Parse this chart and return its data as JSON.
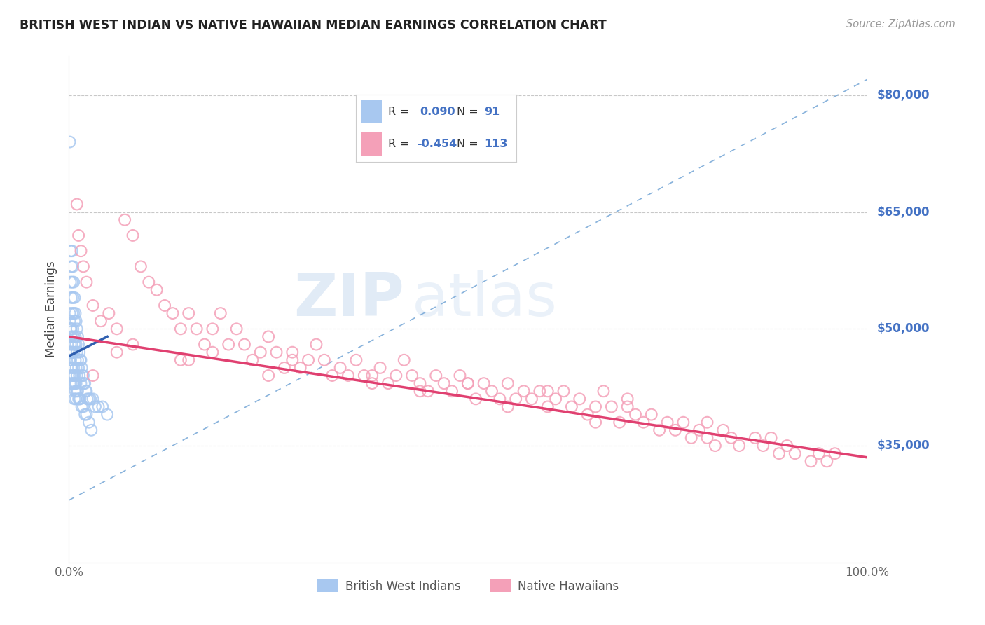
{
  "title": "BRITISH WEST INDIAN VS NATIVE HAWAIIAN MEDIAN EARNINGS CORRELATION CHART",
  "source_text": "Source: ZipAtlas.com",
  "ylabel": "Median Earnings",
  "xlim": [
    0,
    1.0
  ],
  "ylim": [
    20000,
    85000
  ],
  "xtick_labels": [
    "0.0%",
    "100.0%"
  ],
  "ytick_values": [
    35000,
    50000,
    65000,
    80000
  ],
  "ytick_labels": [
    "$35,000",
    "$50,000",
    "$65,000",
    "$80,000"
  ],
  "color_blue": "#A8C8F0",
  "color_pink": "#F4A0B8",
  "color_blue_line": "#3060B0",
  "color_pink_line": "#E04070",
  "color_dashed_line": "#7BAAD8",
  "watermark_zip": "ZIP",
  "watermark_atlas": "atlas",
  "background_color": "#FFFFFF",
  "grid_color": "#BBBBBB",
  "title_color": "#222222",
  "axis_label_color": "#444444",
  "tick_label_color_right": "#4472C4",
  "source_color": "#999999",
  "legend_value_color": "#4472C4",
  "blue_x": [
    0.001,
    0.001,
    0.001,
    0.002,
    0.002,
    0.002,
    0.002,
    0.003,
    0.003,
    0.003,
    0.003,
    0.003,
    0.004,
    0.004,
    0.004,
    0.004,
    0.005,
    0.005,
    0.005,
    0.005,
    0.005,
    0.006,
    0.006,
    0.006,
    0.006,
    0.007,
    0.007,
    0.007,
    0.007,
    0.007,
    0.008,
    0.008,
    0.008,
    0.008,
    0.009,
    0.009,
    0.009,
    0.009,
    0.01,
    0.01,
    0.01,
    0.011,
    0.011,
    0.012,
    0.012,
    0.013,
    0.013,
    0.014,
    0.015,
    0.015,
    0.016,
    0.017,
    0.018,
    0.019,
    0.02,
    0.021,
    0.022,
    0.023,
    0.025,
    0.027,
    0.03,
    0.033,
    0.037,
    0.042,
    0.048,
    0.001,
    0.002,
    0.003,
    0.004,
    0.005,
    0.006,
    0.007,
    0.008,
    0.009,
    0.01,
    0.011,
    0.012,
    0.013,
    0.014,
    0.016,
    0.018,
    0.02,
    0.022,
    0.025,
    0.028,
    0.001,
    0.002,
    0.003,
    0.002,
    0.004,
    0.006
  ],
  "blue_y": [
    74000,
    52000,
    44000,
    60000,
    56000,
    50000,
    46000,
    58000,
    54000,
    50000,
    47000,
    43000,
    60000,
    56000,
    52000,
    47000,
    58000,
    54000,
    50000,
    47000,
    43000,
    56000,
    52000,
    49000,
    45000,
    54000,
    51000,
    48000,
    44000,
    41000,
    52000,
    49000,
    46000,
    42000,
    51000,
    48000,
    45000,
    41000,
    50000,
    47000,
    44000,
    49000,
    46000,
    48000,
    45000,
    47000,
    44000,
    46000,
    46000,
    43000,
    45000,
    44000,
    44000,
    43000,
    43000,
    42000,
    42000,
    41000,
    41000,
    41000,
    41000,
    40000,
    40000,
    40000,
    39000,
    47000,
    46000,
    45000,
    45000,
    44000,
    44000,
    43000,
    43000,
    43000,
    42000,
    42000,
    41000,
    41000,
    41000,
    40000,
    40000,
    39000,
    39000,
    38000,
    37000,
    51000,
    50000,
    49000,
    48000,
    48000,
    47000
  ],
  "pink_x": [
    0.01,
    0.012,
    0.015,
    0.018,
    0.022,
    0.03,
    0.04,
    0.05,
    0.06,
    0.07,
    0.08,
    0.09,
    0.1,
    0.11,
    0.12,
    0.13,
    0.14,
    0.15,
    0.16,
    0.17,
    0.18,
    0.19,
    0.2,
    0.21,
    0.22,
    0.23,
    0.24,
    0.25,
    0.26,
    0.27,
    0.28,
    0.29,
    0.3,
    0.31,
    0.32,
    0.33,
    0.34,
    0.35,
    0.36,
    0.37,
    0.38,
    0.39,
    0.4,
    0.41,
    0.42,
    0.43,
    0.44,
    0.45,
    0.46,
    0.47,
    0.48,
    0.49,
    0.5,
    0.51,
    0.52,
    0.53,
    0.54,
    0.55,
    0.56,
    0.57,
    0.58,
    0.59,
    0.6,
    0.61,
    0.62,
    0.63,
    0.64,
    0.65,
    0.66,
    0.67,
    0.68,
    0.69,
    0.7,
    0.71,
    0.72,
    0.73,
    0.74,
    0.75,
    0.76,
    0.77,
    0.78,
    0.79,
    0.8,
    0.81,
    0.82,
    0.83,
    0.84,
    0.86,
    0.87,
    0.88,
    0.89,
    0.9,
    0.91,
    0.93,
    0.94,
    0.95,
    0.96,
    0.15,
    0.28,
    0.38,
    0.5,
    0.6,
    0.7,
    0.8,
    0.08,
    0.18,
    0.03,
    0.06,
    0.14,
    0.25,
    0.44,
    0.55,
    0.66
  ],
  "pink_y": [
    66000,
    62000,
    60000,
    58000,
    56000,
    53000,
    51000,
    52000,
    50000,
    64000,
    62000,
    58000,
    56000,
    55000,
    53000,
    52000,
    50000,
    52000,
    50000,
    48000,
    50000,
    52000,
    48000,
    50000,
    48000,
    46000,
    47000,
    49000,
    47000,
    45000,
    47000,
    45000,
    46000,
    48000,
    46000,
    44000,
    45000,
    44000,
    46000,
    44000,
    43000,
    45000,
    43000,
    44000,
    46000,
    44000,
    43000,
    42000,
    44000,
    43000,
    42000,
    44000,
    43000,
    41000,
    43000,
    42000,
    41000,
    43000,
    41000,
    42000,
    41000,
    42000,
    40000,
    41000,
    42000,
    40000,
    41000,
    39000,
    40000,
    42000,
    40000,
    38000,
    40000,
    39000,
    38000,
    39000,
    37000,
    38000,
    37000,
    38000,
    36000,
    37000,
    36000,
    35000,
    37000,
    36000,
    35000,
    36000,
    35000,
    36000,
    34000,
    35000,
    34000,
    33000,
    34000,
    33000,
    34000,
    46000,
    46000,
    44000,
    43000,
    42000,
    41000,
    38000,
    48000,
    47000,
    44000,
    47000,
    46000,
    44000,
    42000,
    40000,
    38000
  ]
}
